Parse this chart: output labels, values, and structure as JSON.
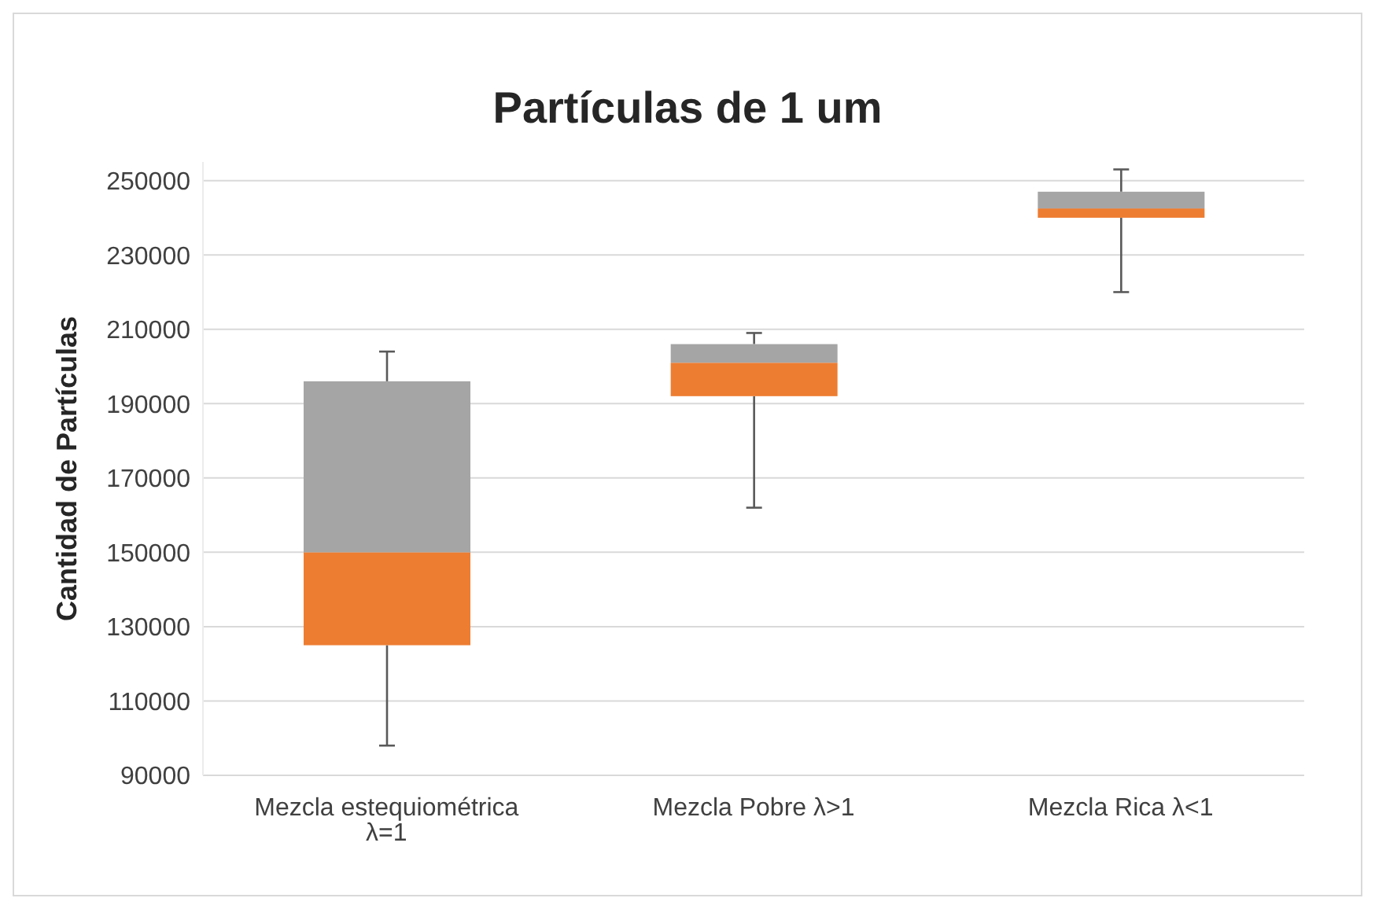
{
  "chart_data": {
    "type": "box",
    "title": "Partículas de 1 um",
    "ylabel": "Cantidad de Partículas",
    "categories": [
      "Mezcla estequiométrica  λ=1",
      "Mezcla Pobre    λ>1",
      "Mezcla Rica     λ<1"
    ],
    "series": [
      {
        "color": "#ed7d31",
        "boxes": [
          {
            "low": 98000,
            "q1": 125000,
            "median": 150000,
            "q3": 196000,
            "high": 204000
          },
          {
            "low": 162000,
            "q1": 192000,
            "median": 201000,
            "q3": 206000,
            "high": 209000
          },
          {
            "low": 220000,
            "q1": 240000,
            "median": 242500,
            "q3": 247000,
            "high": 253000
          }
        ]
      }
    ],
    "colors": [
      "#a5a5a5",
      "#a5a5a5",
      "#a5a5a5"
    ],
    "ylim": [
      90000,
      255000
    ],
    "yticks": [
      90000,
      110000,
      130000,
      150000,
      170000,
      190000,
      210000,
      230000,
      250000
    ],
    "grid": "y",
    "legend": false
  }
}
